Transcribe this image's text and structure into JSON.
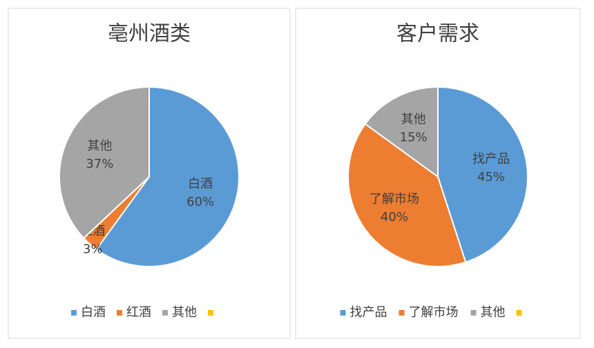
{
  "chart_data": [
    {
      "type": "pie",
      "title": "亳州酒类",
      "categories": [
        "白酒",
        "红酒",
        "其他",
        null
      ],
      "values": [
        60,
        3,
        37,
        0
      ],
      "value_labels": [
        "60%",
        "3%",
        "37%",
        null
      ],
      "colors": [
        "#5b9bd5",
        "#ed7d31",
        "#a5a5a5",
        "#ffc000"
      ],
      "legend": "bottom"
    },
    {
      "type": "pie",
      "title": "客户需求",
      "categories": [
        "找产品",
        "了解市场",
        "其他",
        null
      ],
      "values": [
        45,
        40,
        15,
        0
      ],
      "value_labels": [
        "45%",
        "40%",
        "15%",
        null
      ],
      "colors": [
        "#5b9bd5",
        "#ed7d31",
        "#a5a5a5",
        "#ffc000"
      ],
      "legend": "bottom"
    }
  ]
}
